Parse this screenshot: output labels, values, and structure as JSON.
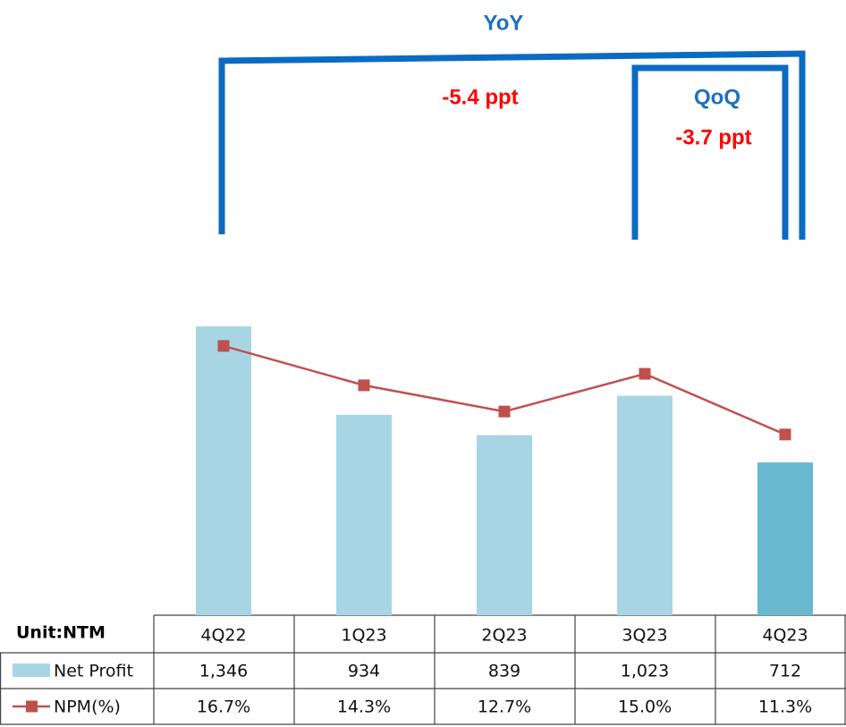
{
  "chart_data": {
    "type": "bar",
    "categories": [
      "4Q22",
      "1Q23",
      "2Q23",
      "3Q23",
      "4Q23"
    ],
    "unit_label": "Unit:NTM",
    "series": [
      {
        "name": "Net Profit",
        "color": "#a8d5e4",
        "colors": [
          "#a8d5e4",
          "#a8d5e4",
          "#a8d5e4",
          "#a8d5e4",
          "#68b8d0"
        ],
        "values": [
          1346,
          934,
          839,
          1023,
          712
        ],
        "value_labels": [
          "1,346",
          "934",
          "839",
          "1,023",
          "712"
        ]
      },
      {
        "name": "NPM(%)",
        "type": "line",
        "axis": "y2",
        "color": "#c0504d",
        "values": [
          16.7,
          14.3,
          12.7,
          15.0,
          11.3
        ],
        "value_labels": [
          "16.7%",
          "14.3%",
          "12.7%",
          "15.0%",
          "11.3%"
        ]
      }
    ],
    "annotations": [
      {
        "text": "YoY",
        "color": "#1f6fbf"
      },
      {
        "text": "-5.4 ppt",
        "color": "#ff0000"
      },
      {
        "text": "QoQ",
        "color": "#1f6fbf"
      },
      {
        "text": "-3.7 ppt",
        "color": "#ff0000"
      }
    ]
  }
}
